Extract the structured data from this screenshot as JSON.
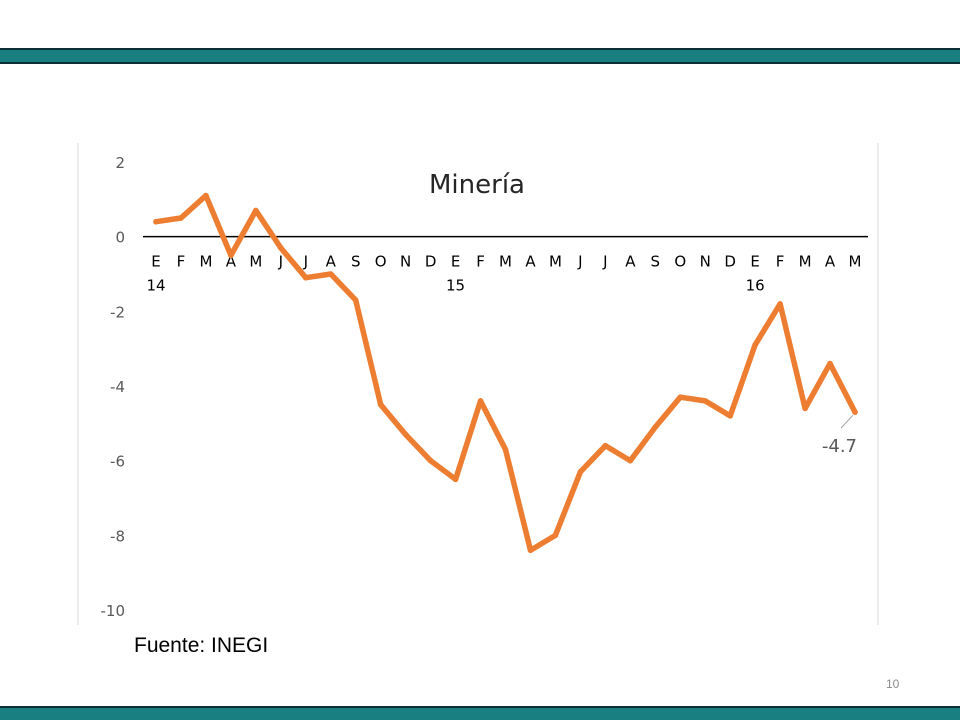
{
  "source_note": "Fuente: INEGI",
  "page_number": "10",
  "colors": {
    "band": "#1a7f80",
    "line": "#ed7d31",
    "axis": "#000000",
    "tick_text": "#595959",
    "title_text": "#262626"
  },
  "chart_data": {
    "type": "line",
    "title": "Minería",
    "xlabel": "",
    "ylabel": "",
    "ylim": [
      -10,
      2
    ],
    "yticks": [
      2,
      0,
      -2,
      -4,
      -6,
      -8,
      -10
    ],
    "grid": false,
    "legend": "none",
    "categories": [
      "E",
      "F",
      "M",
      "A",
      "M",
      "J",
      "J",
      "A",
      "S",
      "O",
      "N",
      "D",
      "E",
      "F",
      "M",
      "A",
      "M",
      "J",
      "J",
      "A",
      "S",
      "O",
      "N",
      "D",
      "E",
      "F",
      "M",
      "A",
      "M"
    ],
    "year_labels": [
      {
        "index": 0,
        "label": "14"
      },
      {
        "index": 12,
        "label": "15"
      },
      {
        "index": 24,
        "label": "16"
      }
    ],
    "series": [
      {
        "name": "",
        "values": [
          0.4,
          0.5,
          1.1,
          -0.5,
          0.7,
          -0.3,
          -1.1,
          -1.0,
          -1.7,
          -4.5,
          -5.3,
          -6.0,
          -6.5,
          -4.4,
          -5.7,
          -8.4,
          -8.0,
          -6.3,
          -5.6,
          -6.0,
          -5.1,
          -4.3,
          -4.4,
          -4.8,
          -2.9,
          -1.8,
          -4.6,
          -3.4,
          -4.7
        ]
      }
    ],
    "annotations": [
      {
        "index": 28,
        "text": "-4.7"
      }
    ]
  }
}
